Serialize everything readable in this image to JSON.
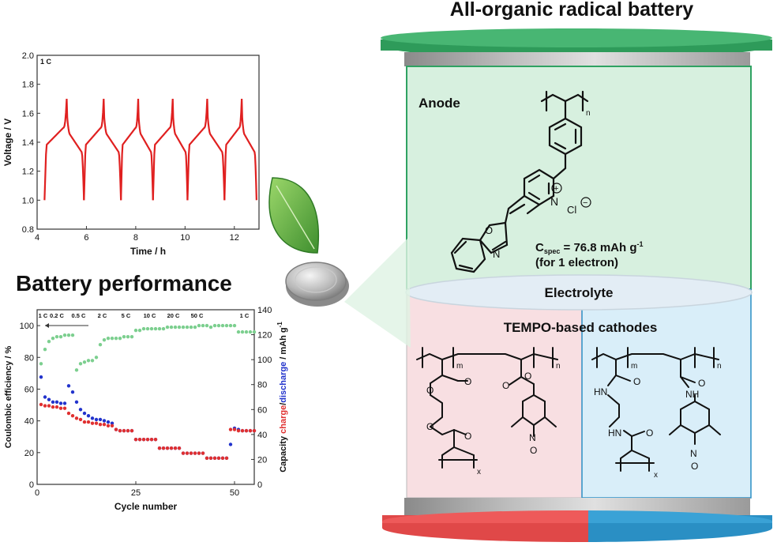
{
  "title": "All-organic radical battery",
  "performance_heading": "Battery performance",
  "battery": {
    "anode_label": "Anode",
    "electrolyte_label": "Electrolyte",
    "cathode_label": "TEMPO-based cathodes",
    "cspec_prefix": "C",
    "cspec_sub": "spec",
    "cspec_value": " = 76.8 mAh g",
    "cspec_exp": "-1",
    "cspec_note": "(for 1 electron)",
    "chloride": "Cl",
    "subscripts": {
      "n": "n",
      "m": "m",
      "x": "x"
    },
    "atoms": {
      "O": "O",
      "N": "N",
      "HN": "HN",
      "NH": "NH"
    },
    "colors": {
      "anode": "#d7f0df",
      "cathode_left": "#f8dfe2",
      "cathode_right": "#d9eef9",
      "cap_top": "#2e9b5a",
      "cap_bottom_left": "#e04848",
      "cap_bottom_right": "#2a8fc4"
    }
  },
  "chart_data": [
    {
      "type": "line",
      "corner_label": "1 C",
      "xlabel": "Time / h",
      "ylabel": "Voltage / V",
      "xlim": [
        4,
        13
      ],
      "ylim": [
        0.8,
        2.0
      ],
      "xticks": [
        4,
        6,
        8,
        10,
        12
      ],
      "yticks": [
        0.8,
        1.0,
        1.2,
        1.4,
        1.6,
        1.8,
        2.0
      ],
      "series": [
        {
          "color": "#e02020",
          "cycles": [
            {
              "start": 4.3,
              "peak": 5.2,
              "end": 5.9
            },
            {
              "start": 5.9,
              "peak": 6.7,
              "end": 7.4
            },
            {
              "start": 7.4,
              "peak": 8.1,
              "end": 8.7
            },
            {
              "start": 8.7,
              "peak": 9.5,
              "end": 10.1
            },
            {
              "start": 10.1,
              "peak": 10.9,
              "end": 11.6
            },
            {
              "start": 11.6,
              "peak": 12.3,
              "end": 12.9
            }
          ],
          "min_voltage": 1.0,
          "plateau_voltage": 1.38,
          "max_voltage": 1.7
        }
      ]
    },
    {
      "type": "scatter",
      "xlabel": "Cycle number",
      "ylabel_left": "Coulombic efficiency / %",
      "ylabel_right_parts": [
        "Capacity ",
        "charge",
        "/",
        "discharge",
        " / mAh g",
        "-1"
      ],
      "xlim": [
        0,
        55
      ],
      "ylim_left": [
        0,
        110
      ],
      "ylim_right": [
        0,
        140
      ],
      "xticks": [
        0,
        25,
        50
      ],
      "yticks_left": [
        0,
        20,
        40,
        60,
        80,
        100
      ],
      "yticks_right": [
        0,
        20,
        40,
        60,
        80,
        100,
        120,
        140
      ],
      "rate_labels": [
        "1 C",
        "0.2 C",
        "0.5 C",
        "2 C",
        "5 C",
        "10 C",
        "20 C",
        "50 C",
        "1 C"
      ],
      "rate_boundaries": [
        2,
        7,
        13,
        19,
        25,
        31,
        37,
        43,
        49
      ],
      "series": [
        {
          "name": "Coulombic efficiency",
          "color": "#7ccf8f",
          "y": [
            76,
            85,
            90,
            92,
            93,
            93,
            94,
            94,
            94,
            72,
            76,
            77,
            78,
            78,
            80,
            88,
            91,
            92,
            92,
            92,
            92,
            93,
            93,
            93,
            97,
            97,
            98,
            98,
            98,
            98,
            98,
            98,
            99,
            99,
            99,
            99,
            99,
            99,
            99,
            99,
            100,
            100,
            100,
            99,
            100,
            100,
            100,
            100,
            100,
            100,
            96,
            96,
            96,
            96,
            96
          ]
        },
        {
          "name": "charge",
          "color": "#2233cc",
          "y": [
            86,
            70,
            68,
            66,
            66,
            65,
            65,
            79,
            74,
            66,
            60,
            57,
            55,
            53,
            52,
            52,
            51,
            50,
            49,
            44,
            43,
            43,
            43,
            43,
            36,
            36,
            36,
            36,
            36,
            36,
            29,
            29,
            29,
            29,
            29,
            29,
            25,
            25,
            25,
            25,
            25,
            25,
            21,
            21,
            21,
            21,
            21,
            21,
            32,
            45,
            44,
            43,
            43,
            43,
            43
          ]
        },
        {
          "name": "discharge",
          "color": "#e03030",
          "y": [
            64,
            63,
            63,
            62,
            62,
            61,
            61,
            57,
            55,
            53,
            52,
            50,
            50,
            49,
            49,
            48,
            48,
            47,
            47,
            44,
            43,
            43,
            43,
            43,
            36,
            36,
            36,
            36,
            36,
            36,
            29,
            29,
            29,
            29,
            29,
            29,
            25,
            25,
            25,
            25,
            25,
            25,
            21,
            21,
            21,
            21,
            21,
            21,
            44,
            44,
            43,
            43,
            43,
            43,
            43
          ]
        }
      ]
    }
  ]
}
